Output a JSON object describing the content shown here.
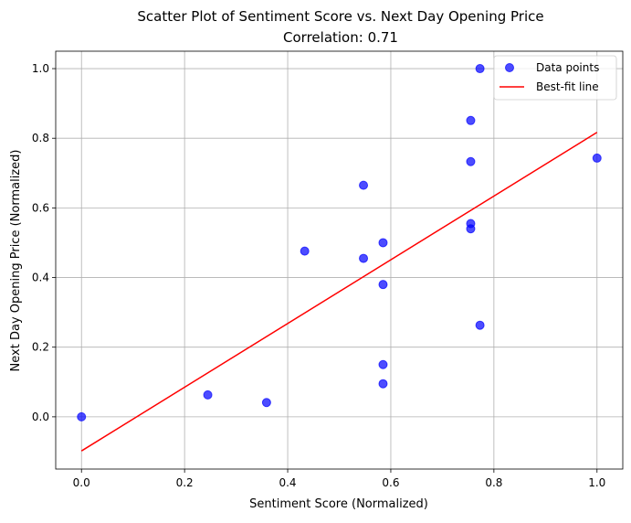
{
  "chart_data": {
    "type": "scatter",
    "title": "Scatter Plot of Sentiment Score vs. Next Day Opening Price",
    "subtitle": "Correlation: 0.71",
    "xlabel": "Sentiment Score (Normalized)",
    "ylabel": "Next Day Opening Price (Normalized)",
    "xlim": [
      -0.05,
      1.05
    ],
    "ylim": [
      -0.15,
      1.05
    ],
    "x_ticks": [
      0.0,
      0.2,
      0.4,
      0.6,
      0.8,
      1.0
    ],
    "y_ticks": [
      0.0,
      0.2,
      0.4,
      0.6,
      0.8,
      1.0
    ],
    "x_tick_labels": [
      "0.0",
      "0.2",
      "0.4",
      "0.6",
      "0.8",
      "1.0"
    ],
    "y_tick_labels": [
      "0.0",
      "0.2",
      "0.4",
      "0.6",
      "0.8",
      "1.0"
    ],
    "grid": true,
    "legend_position": "top-right",
    "series": [
      {
        "name": "Data points",
        "kind": "scatter",
        "color": "#0000ff",
        "points": [
          [
            0.0,
            0.0
          ],
          [
            0.245,
            0.063
          ],
          [
            0.359,
            0.041
          ],
          [
            0.433,
            0.476
          ],
          [
            0.547,
            0.455
          ],
          [
            0.547,
            0.665
          ],
          [
            0.585,
            0.5
          ],
          [
            0.585,
            0.38
          ],
          [
            0.585,
            0.15
          ],
          [
            0.585,
            0.095
          ],
          [
            0.755,
            0.851
          ],
          [
            0.755,
            0.733
          ],
          [
            0.755,
            0.555
          ],
          [
            0.755,
            0.54
          ],
          [
            0.773,
            1.0
          ],
          [
            0.773,
            0.263
          ],
          [
            1.0,
            0.743
          ]
        ]
      },
      {
        "name": "Best-fit line",
        "kind": "line",
        "color": "#ff0000",
        "x": [
          0.0,
          1.0
        ],
        "y": [
          -0.098,
          0.817
        ]
      }
    ]
  }
}
